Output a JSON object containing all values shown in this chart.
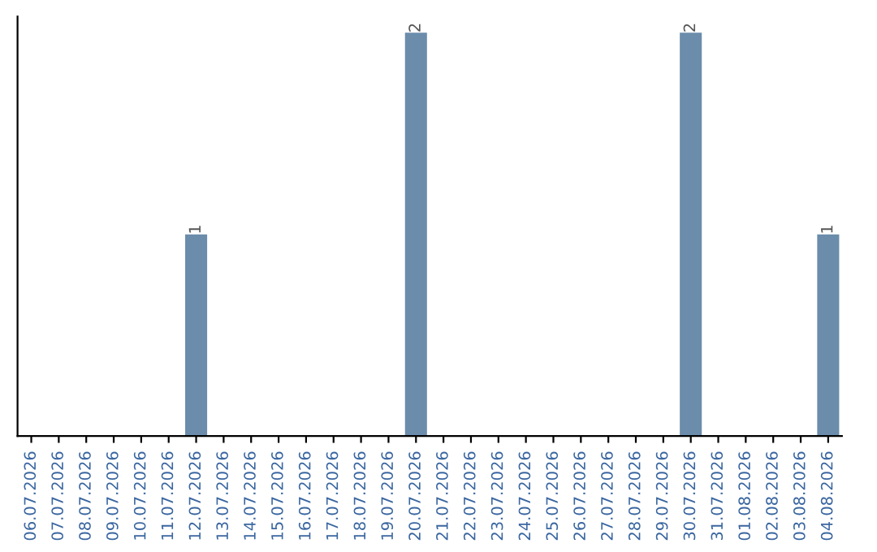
{
  "chart_data": {
    "type": "bar",
    "categories": [
      "06.07.2026",
      "07.07.2026",
      "08.07.2026",
      "09.07.2026",
      "10.07.2026",
      "11.07.2026",
      "12.07.2026",
      "13.07.2026",
      "14.07.2026",
      "15.07.2026",
      "16.07.2026",
      "17.07.2026",
      "18.07.2026",
      "19.07.2026",
      "20.07.2026",
      "21.07.2026",
      "22.07.2026",
      "23.07.2026",
      "24.07.2026",
      "25.07.2026",
      "26.07.2026",
      "27.07.2026",
      "28.07.2026",
      "29.07.2026",
      "30.07.2026",
      "31.07.2026",
      "01.08.2026",
      "02.08.2026",
      "03.08.2026",
      "04.08.2026"
    ],
    "values": [
      0,
      0,
      0,
      0,
      0,
      0,
      1,
      0,
      0,
      0,
      0,
      0,
      0,
      0,
      2,
      0,
      0,
      0,
      0,
      0,
      0,
      0,
      0,
      0,
      2,
      0,
      0,
      0,
      0,
      1
    ],
    "color": "#6b8cab",
    "value_labels": [
      null,
      null,
      null,
      null,
      null,
      null,
      "1",
      null,
      null,
      null,
      null,
      null,
      null,
      null,
      "2",
      null,
      null,
      null,
      null,
      null,
      null,
      null,
      null,
      null,
      "2",
      null,
      null,
      null,
      null,
      "1"
    ],
    "tick_labels": "x",
    "grid": false,
    "legend": false
  }
}
